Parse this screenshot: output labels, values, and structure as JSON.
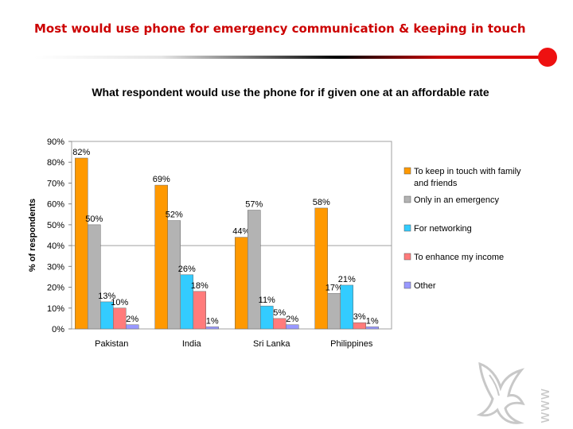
{
  "slide": {
    "title": "Most would use phone for emergency communication & keeping in touch"
  },
  "chart_data": {
    "type": "bar",
    "title": "What respondent would use the phone for if given one at an affordable rate",
    "ylabel": "% of respondents",
    "xlabel": "",
    "ylim": [
      0,
      90
    ],
    "yticks": [
      "0%",
      "10%",
      "20%",
      "30%",
      "40%",
      "50%",
      "60%",
      "70%",
      "80%",
      "90%"
    ],
    "categories": [
      "Pakistan",
      "India",
      "Sri Lanka",
      "Philippines"
    ],
    "series": [
      {
        "name": "To keep in touch with family and friends",
        "color": "#ff9900",
        "values": [
          82,
          69,
          44,
          58
        ],
        "labels": [
          "82%",
          "69%",
          "44%",
          "58%"
        ]
      },
      {
        "name": "Only in an emergency",
        "color": "#b3b3b3",
        "values": [
          50,
          52,
          57,
          17
        ],
        "labels": [
          "50%",
          "52%",
          "57%",
          "17%"
        ]
      },
      {
        "name": "For networking",
        "color": "#33ccff",
        "values": [
          13,
          26,
          11,
          21
        ],
        "labels": [
          "13%",
          "26%",
          "11%",
          "21%"
        ]
      },
      {
        "name": "To enhance my income",
        "color": "#ff7b7b",
        "values": [
          10,
          18,
          5,
          3
        ],
        "labels": [
          "10%",
          "18%",
          "5%",
          "3%"
        ]
      },
      {
        "name": "Other",
        "color": "#9999ff",
        "values": [
          2,
          1,
          2,
          1
        ],
        "labels": [
          "2%",
          "1%",
          "2%",
          "1%"
        ]
      }
    ],
    "legend_position": "right",
    "grid": false,
    "reference_line": 40
  },
  "watermark": {
    "text": "www",
    "logo_icon": "bird-logo-icon"
  }
}
